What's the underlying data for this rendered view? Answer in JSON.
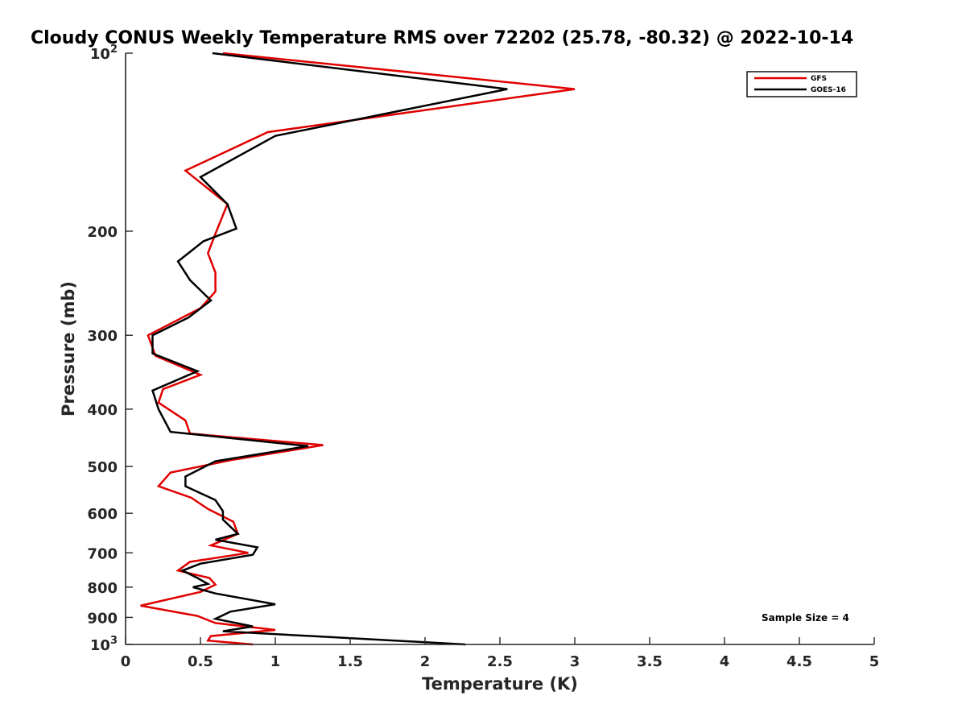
{
  "chart_data": {
    "type": "line",
    "title": "Cloudy CONUS Weekly Temperature RMS over 72202 (25.78, -80.32) @ 2022-10-14",
    "xlabel": "Temperature (K)",
    "ylabel": "Pressure (mb)",
    "xlim": [
      0,
      5
    ],
    "ylim": [
      100,
      1000
    ],
    "y_scale": "log",
    "y_reversed": true,
    "x_ticks": [
      "0",
      "0.5",
      "1",
      "1.5",
      "2",
      "2.5",
      "3",
      "3.5",
      "4",
      "4.5",
      "5"
    ],
    "y_ticks": [
      {
        "value": 100,
        "base": "10",
        "exp": "2"
      },
      {
        "value": 200,
        "label": "200"
      },
      {
        "value": 300,
        "label": "300"
      },
      {
        "value": 400,
        "label": "400"
      },
      {
        "value": 500,
        "label": "500"
      },
      {
        "value": 600,
        "label": "600"
      },
      {
        "value": 700,
        "label": "700"
      },
      {
        "value": 800,
        "label": "800"
      },
      {
        "value": 900,
        "label": "900"
      },
      {
        "value": 1000,
        "base": "10",
        "exp": "3"
      }
    ],
    "grid": false,
    "legend_position": "top-right",
    "annotation": "Sample Size = 4",
    "series": [
      {
        "name": "GFS",
        "color": "#e00000",
        "points": [
          [
            0.65,
            100
          ],
          [
            3.0,
            115
          ],
          [
            0.95,
            136
          ],
          [
            0.4,
            158
          ],
          [
            0.68,
            180
          ],
          [
            0.6,
            202
          ],
          [
            0.55,
            218
          ],
          [
            0.6,
            235
          ],
          [
            0.6,
            253
          ],
          [
            0.5,
            270
          ],
          [
            0.15,
            300
          ],
          [
            0.2,
            325
          ],
          [
            0.5,
            350
          ],
          [
            0.25,
            370
          ],
          [
            0.22,
            390
          ],
          [
            0.4,
            418
          ],
          [
            0.43,
            440
          ],
          [
            1.32,
            460
          ],
          [
            0.7,
            488
          ],
          [
            0.3,
            512
          ],
          [
            0.22,
            540
          ],
          [
            0.44,
            565
          ],
          [
            0.55,
            590
          ],
          [
            0.72,
            620
          ],
          [
            0.75,
            650
          ],
          [
            0.57,
            680
          ],
          [
            0.82,
            700
          ],
          [
            0.43,
            725
          ],
          [
            0.35,
            750
          ],
          [
            0.56,
            772
          ],
          [
            0.6,
            792
          ],
          [
            0.5,
            815
          ],
          [
            0.1,
            860
          ],
          [
            0.48,
            895
          ],
          [
            0.6,
            920
          ],
          [
            1.0,
            945
          ],
          [
            0.57,
            968
          ],
          [
            0.55,
            985
          ],
          [
            0.85,
            1000
          ]
        ]
      },
      {
        "name": "GOES-16",
        "color": "#000000",
        "points": [
          [
            0.58,
            100
          ],
          [
            2.55,
            115
          ],
          [
            1.0,
            138
          ],
          [
            0.5,
            162
          ],
          [
            0.68,
            180
          ],
          [
            0.74,
            198
          ],
          [
            0.52,
            208
          ],
          [
            0.35,
            225
          ],
          [
            0.43,
            242
          ],
          [
            0.57,
            262
          ],
          [
            0.42,
            280
          ],
          [
            0.18,
            300
          ],
          [
            0.18,
            322
          ],
          [
            0.48,
            345
          ],
          [
            0.18,
            372
          ],
          [
            0.22,
            400
          ],
          [
            0.3,
            437
          ],
          [
            1.22,
            462
          ],
          [
            0.6,
            490
          ],
          [
            0.4,
            520
          ],
          [
            0.4,
            540
          ],
          [
            0.6,
            570
          ],
          [
            0.65,
            595
          ],
          [
            0.65,
            615
          ],
          [
            0.75,
            650
          ],
          [
            0.6,
            665
          ],
          [
            0.88,
            685
          ],
          [
            0.85,
            705
          ],
          [
            0.5,
            730
          ],
          [
            0.38,
            750
          ],
          [
            0.48,
            772
          ],
          [
            0.55,
            790
          ],
          [
            0.45,
            800
          ],
          [
            0.6,
            820
          ],
          [
            1.0,
            855
          ],
          [
            0.7,
            880
          ],
          [
            0.6,
            905
          ],
          [
            0.85,
            932
          ],
          [
            0.65,
            950
          ],
          [
            2.27,
            1000
          ]
        ]
      }
    ]
  }
}
